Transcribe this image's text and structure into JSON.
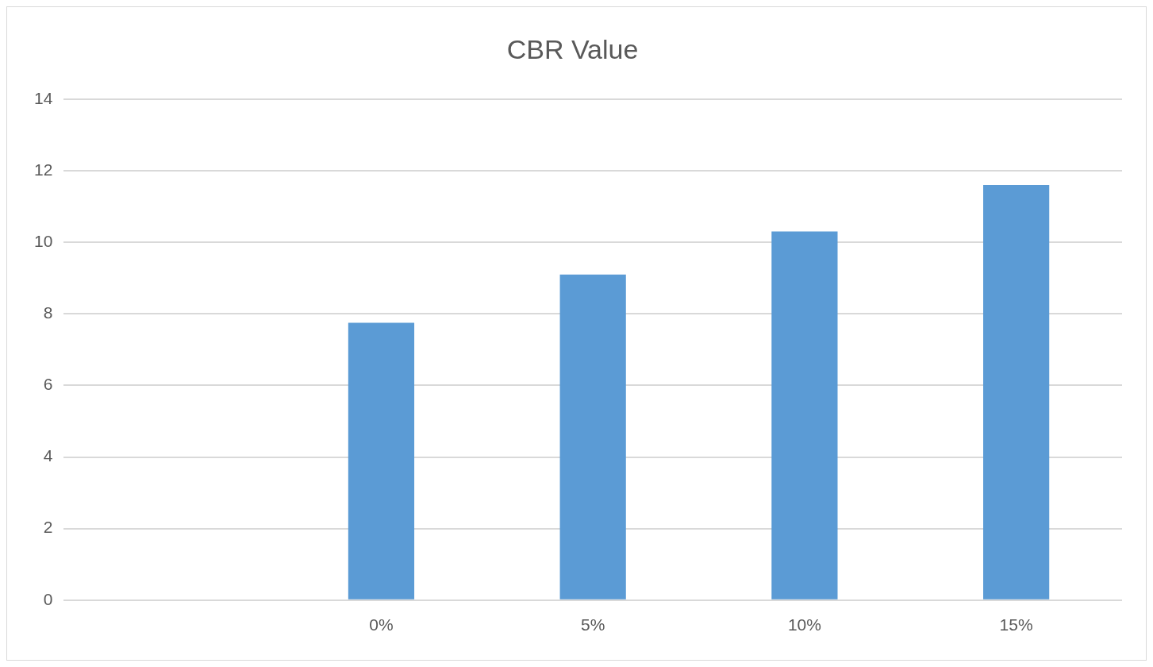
{
  "chart_data": {
    "type": "bar",
    "title": "CBR Value",
    "categories": [
      null,
      "0%",
      "5%",
      "10%",
      "15%"
    ],
    "values": [
      null,
      7.75,
      9.1,
      10.3,
      11.6
    ],
    "color": "#5b9bd5",
    "ylim": [
      0,
      14
    ],
    "yticks": [
      0,
      2,
      4,
      6,
      8,
      10,
      12,
      14
    ],
    "grid": "y",
    "legend": false
  }
}
